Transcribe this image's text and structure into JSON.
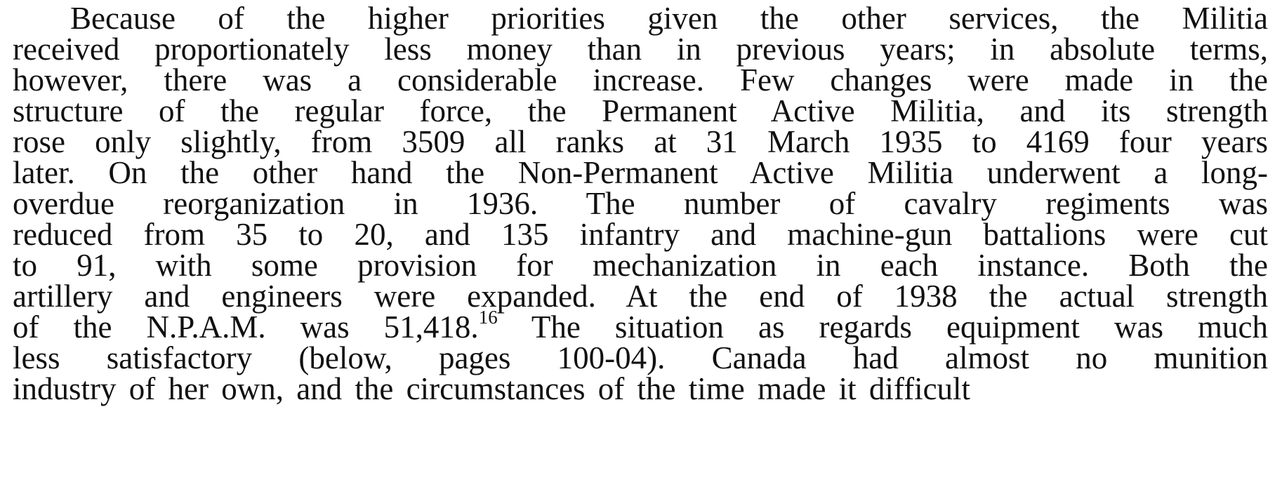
{
  "document": {
    "lines": [
      "Because of the higher priorities given the other services, the Militia",
      "received proportionately less money than in previous years; in absolute terms,",
      "however, there was a considerable increase. Few changes were made in the",
      "structure of the regular force, the Permanent Active Militia, and its strength",
      "rose only slightly, from 3509 all ranks at 31 March 1935 to 4169 four years",
      "later. On the other hand the Non-Permanent Active Militia underwent a long-",
      "overdue reorganization in 1936. The number of cavalry regiments was",
      "reduced from 35 to 20, and 135 infantry and machine-gun battalions were cut",
      "to 91, with some provision for mechanization in each instance. Both the",
      "artillery and engineers were expanded. At the end of 1938 the actual strength"
    ],
    "footnote_line": {
      "before": "of the N.P.A.M. was 51,418.",
      "marker": "16",
      "after": " The situation as regards equipment was much"
    },
    "closing_lines": [
      "less satisfactory (below, pages 100-04). Canada had almost no munition",
      "industry of her own, and the circumstances of the time made it difficult"
    ]
  }
}
